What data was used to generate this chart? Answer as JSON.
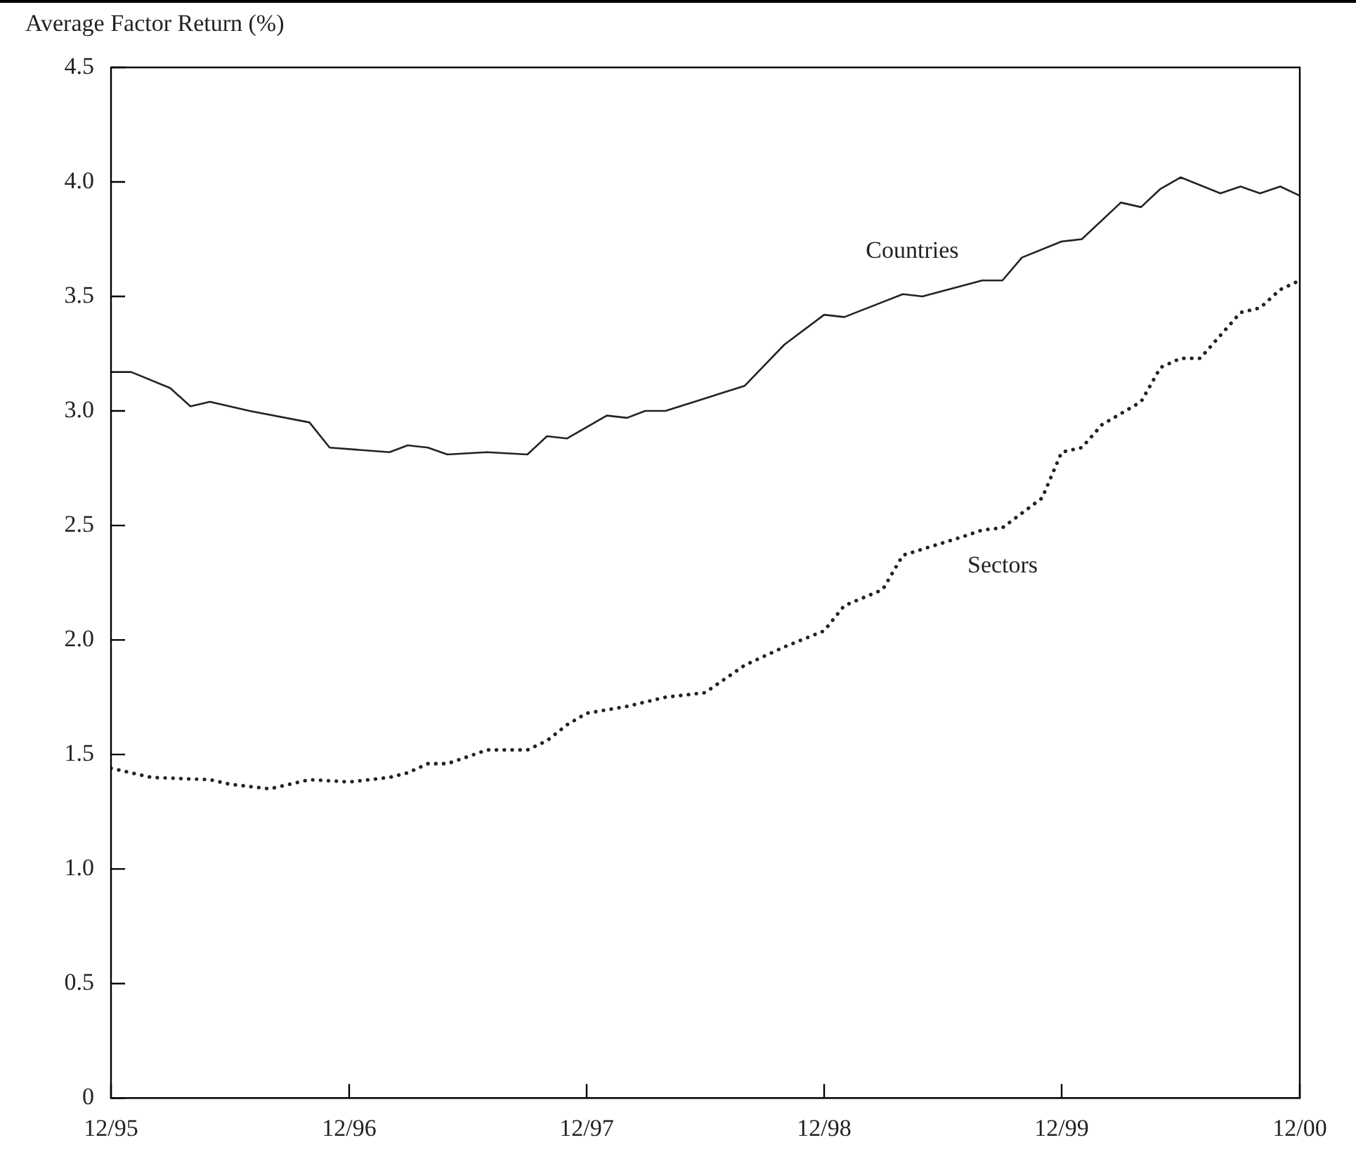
{
  "chart_data": {
    "type": "line",
    "ylabel": "Average Factor Return (%)",
    "xlim": [
      "1995-12",
      "2000-12"
    ],
    "xticks": [
      {
        "value": "1995-12",
        "label": "12/95"
      },
      {
        "value": "1996-12",
        "label": "12/96"
      },
      {
        "value": "1997-12",
        "label": "12/97"
      },
      {
        "value": "1998-12",
        "label": "12/98"
      },
      {
        "value": "1999-12",
        "label": "12/99"
      },
      {
        "value": "2000-12",
        "label": "12/00"
      }
    ],
    "ylim": [
      0,
      4.5
    ],
    "yticks": [
      0,
      0.5,
      {
        "value": 1,
        "label": "1.0"
      },
      1.5,
      {
        "value": 2,
        "label": "2.0"
      },
      2.5,
      {
        "value": 3,
        "label": "3.0"
      },
      3.5,
      {
        "value": 4,
        "label": "4.0"
      },
      4.5
    ],
    "grid": false,
    "legend": false,
    "marker": "none",
    "series": [
      {
        "name": "Countries",
        "color": "#222222",
        "line_style": "solid",
        "x": [
          "1995-12",
          "1996-01",
          "1996-03",
          "1996-04",
          "1996-05",
          "1996-07",
          "1996-10",
          "1996-11",
          "1997-02",
          "1997-03",
          "1997-04",
          "1997-05",
          "1997-07",
          "1997-09",
          "1997-10",
          "1997-11",
          "1998-01",
          "1998-02",
          "1998-03",
          "1998-04",
          "1998-08",
          "1998-10",
          "1998-12",
          "1999-01",
          "1999-04",
          "1999-05",
          "1999-08",
          "1999-09",
          "1999-10",
          "1999-12",
          "2000-01",
          "2000-03",
          "2000-04",
          "2000-05",
          "2000-06",
          "2000-08",
          "2000-09",
          "2000-10",
          "2000-11",
          "2000-12"
        ],
        "values": [
          3.17,
          3.17,
          3.1,
          3.02,
          3.04,
          3.0,
          2.95,
          2.84,
          2.82,
          2.85,
          2.84,
          2.81,
          2.82,
          2.81,
          2.89,
          2.88,
          2.98,
          2.97,
          3.0,
          3.0,
          3.11,
          3.29,
          3.42,
          3.41,
          3.51,
          3.5,
          3.57,
          3.57,
          3.67,
          3.74,
          3.75,
          3.91,
          3.89,
          3.97,
          4.02,
          3.95,
          3.98,
          3.95,
          3.98,
          3.94
        ]
      },
      {
        "name": "Sectors",
        "color": "#222222",
        "line_style": "dotted",
        "x": [
          "1995-12",
          "1996-02",
          "1996-05",
          "1996-06",
          "1996-08",
          "1996-10",
          "1996-12",
          "1997-02",
          "1997-03",
          "1997-04",
          "1997-05",
          "1997-06",
          "1997-07",
          "1997-09",
          "1997-10",
          "1997-11",
          "1997-12",
          "1998-02",
          "1998-04",
          "1998-06",
          "1998-08",
          "1998-10",
          "1998-12",
          "1999-01",
          "1999-03",
          "1999-04",
          "1999-07",
          "1999-08",
          "1999-09",
          "1999-11",
          "1999-12",
          "2000-01",
          "2000-02",
          "2000-04",
          "2000-05",
          "2000-06",
          "2000-07",
          "2000-08",
          "2000-09",
          "2000-10",
          "2000-11",
          "2000-12"
        ],
        "values": [
          1.44,
          1.4,
          1.39,
          1.37,
          1.35,
          1.39,
          1.38,
          1.4,
          1.42,
          1.46,
          1.46,
          1.49,
          1.52,
          1.52,
          1.56,
          1.63,
          1.68,
          1.71,
          1.75,
          1.77,
          1.89,
          1.97,
          2.04,
          2.15,
          2.22,
          2.37,
          2.45,
          2.48,
          2.49,
          2.62,
          2.82,
          2.84,
          2.94,
          3.04,
          3.19,
          3.23,
          3.23,
          3.33,
          3.43,
          3.45,
          3.53,
          3.57
        ]
      }
    ]
  }
}
